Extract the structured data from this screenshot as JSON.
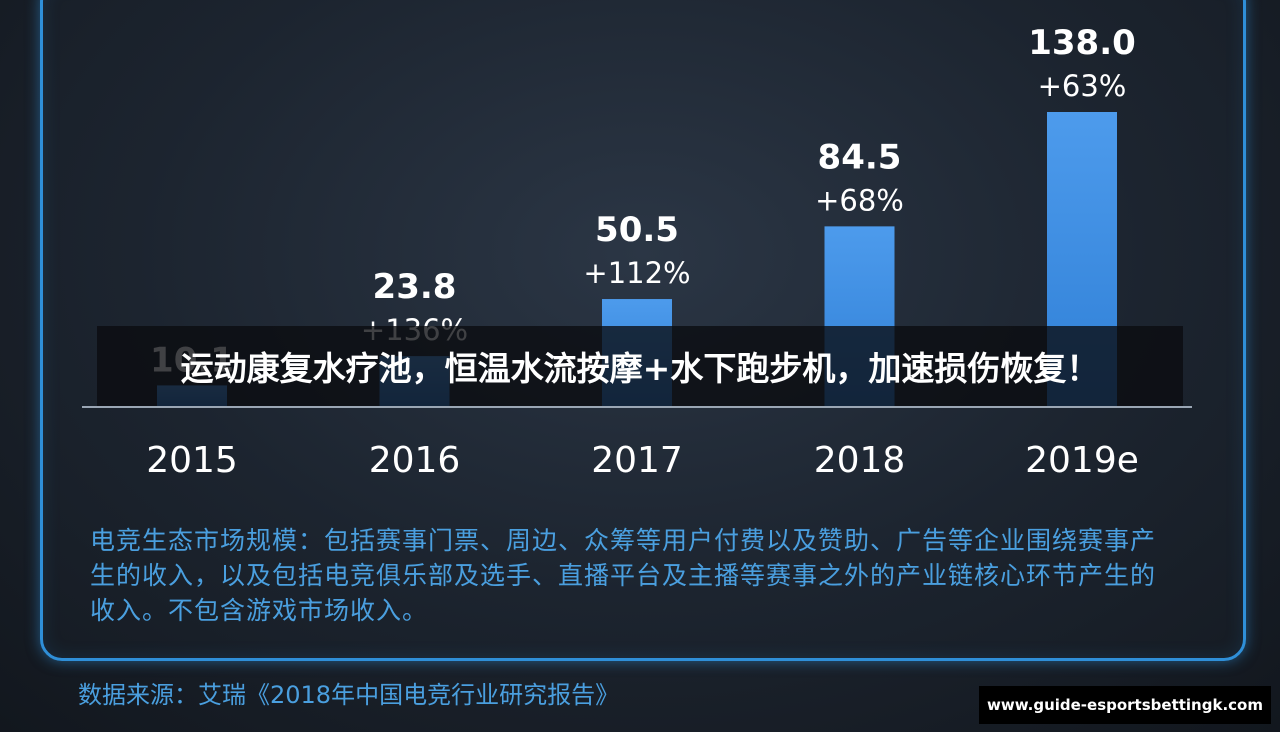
{
  "chart_data": {
    "type": "bar",
    "categories": [
      "2015",
      "2016",
      "2017",
      "2018",
      "2019e"
    ],
    "values": [
      10.1,
      23.8,
      50.5,
      84.5,
      138.0
    ],
    "value_labels": [
      "10.1",
      "23.8",
      "50.5",
      "84.5",
      "138.0"
    ],
    "growth_labels": [
      "",
      "+136%",
      "+112%",
      "+68%",
      "+63%"
    ],
    "colors": {
      "bar": "#2f7fd6",
      "bar_highlight": "#4d9bec",
      "axis": "#9aa6b4"
    },
    "grid": false,
    "legend": "none"
  },
  "note": "电竞生态市场规模：包括赛事门票、周边、众筹等用户付费以及赞助、广告等企业围绕赛事产生的收入，以及包括电竞俱乐部及选手、直播平台及主播等赛事之外的产业链核心环节产生的收入。不包含游戏市场收入。",
  "source": "数据来源：艾瑞《2018年中国电竞行业研究报告》",
  "overlay_title": "运动康复水疗池，恒温水流按摩+水下跑步机，加速损伤恢复！",
  "watermark": "www.guide-esportsbettingk.com"
}
